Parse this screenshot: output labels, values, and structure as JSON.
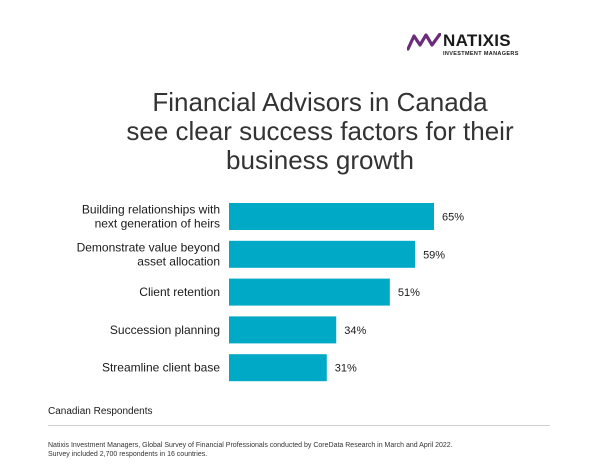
{
  "brand": {
    "name": "NATIXIS",
    "tagline": "INVESTMENT MANAGERS",
    "logo_color": "#6b2d7b"
  },
  "title_lines": [
    "Financial Advisors in Canada",
    "see clear success factors for their",
    "business growth"
  ],
  "chart_data": {
    "type": "bar",
    "orientation": "horizontal",
    "title": "Financial Advisors in Canada see clear success factors for their business growth",
    "categories": [
      "Building relationships with next generation of heirs",
      "Demonstrate value beyond asset allocation",
      "Client retention",
      "Succession planning",
      "Streamline client base"
    ],
    "category_lines": [
      [
        "Building relationships with",
        "next generation of heirs"
      ],
      [
        "Demonstrate value beyond",
        "asset allocation"
      ],
      [
        "Client retention"
      ],
      [
        "Succession planning"
      ],
      [
        "Streamline client base"
      ]
    ],
    "values": [
      65,
      59,
      51,
      34,
      31
    ],
    "value_labels": [
      "65%",
      "59%",
      "51%",
      "34%",
      "31%"
    ],
    "unit": "%",
    "xlim": [
      0,
      100
    ],
    "bar_color": "#00a9c6",
    "grid": false,
    "legend": "none"
  },
  "footer": {
    "respondents": "Canadian Respondents",
    "source_lines": [
      "Natixis Investment Managers, Global Survey of Financial Professionals conducted by CoreData Research in March and April 2022.",
      "Survey included 2,700 respondents in 16 countries."
    ]
  }
}
